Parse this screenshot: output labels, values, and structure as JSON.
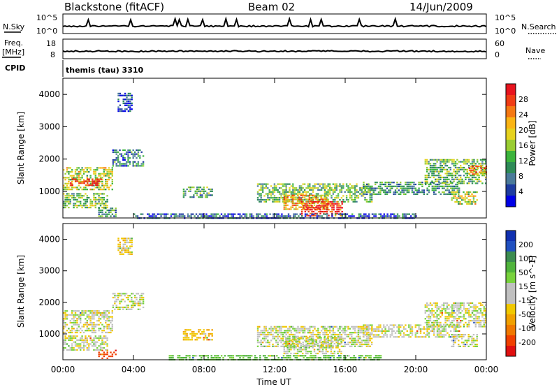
{
  "header": {
    "station": "Blackstone (fitACF)",
    "beam": "Beam 02",
    "date": "14/Jun/2009"
  },
  "aux_panels": {
    "nsky_label": "N.Sky",
    "nsearch_label": "N.Search",
    "noise_ticks_left": [
      "10^5",
      "10^0"
    ],
    "noise_ticks_right": [
      "10^5",
      "10^0"
    ],
    "freq_label_1": "Freq.",
    "freq_label_2": "[MHz]",
    "freq_ticks": [
      "18",
      "8"
    ],
    "nave_label": "Nave",
    "nave_ticks": [
      "60",
      "0"
    ],
    "cpid_label": "CPID",
    "cpid_value": "themis (tau) 3310"
  },
  "colorbars": {
    "power": {
      "label": "Power [dB]",
      "ticks": [
        "28",
        "24",
        "20",
        "16",
        "12",
        "8",
        "4"
      ],
      "colors": [
        "#e8141e",
        "#f03c14",
        "#f57812",
        "#fab414",
        "#e6d21e",
        "#9acd32",
        "#3cb43c",
        "#2e8b57",
        "#4a7a9a",
        "#1e3ca0",
        "#0000e6"
      ]
    },
    "velocity": {
      "label": "Velocity [m s^-1]",
      "ticks": [
        "200",
        "100",
        "50",
        "15",
        "-15",
        "-50",
        "-100",
        "-200"
      ],
      "colors": [
        "#1030b0",
        "#2050c0",
        "#3c8c50",
        "#50b43c",
        "#78d23c",
        "#c0c0c0",
        "#c0c0c0",
        "#f0c800",
        "#f0a000",
        "#f07800",
        "#f04000",
        "#e01010"
      ]
    }
  },
  "chart_data": [
    {
      "type": "heatmap",
      "panel": "power",
      "ylabel": "Slant Range [km]",
      "yticks": [
        "4000",
        "3000",
        "2000",
        "1000"
      ],
      "xticks": [
        "00:00",
        "04:00",
        "08:00",
        "12:00",
        "16:00",
        "20:00",
        "00:00"
      ],
      "xlim_hours": [
        0,
        24
      ],
      "ylim_km": [
        180,
        4500
      ],
      "regions": [
        {
          "t0": 0.0,
          "t1": 2.8,
          "r0": 1050,
          "r1": 1750,
          "level": 0.55
        },
        {
          "t0": 0.4,
          "t1": 2.2,
          "r0": 1200,
          "r1": 1400,
          "level": 0.95
        },
        {
          "t0": 0.0,
          "t1": 2.5,
          "r0": 500,
          "r1": 950,
          "level": 0.45
        },
        {
          "t0": 2.0,
          "t1": 3.0,
          "r0": 250,
          "r1": 500,
          "level": 0.3
        },
        {
          "t0": 2.8,
          "t1": 4.6,
          "r0": 1800,
          "r1": 2300,
          "level": 0.25
        },
        {
          "t0": 3.1,
          "t1": 3.9,
          "r0": 3500,
          "r1": 4050,
          "level": 0.1
        },
        {
          "t0": 6.8,
          "t1": 8.5,
          "r0": 800,
          "r1": 1150,
          "level": 0.35
        },
        {
          "t0": 11.0,
          "t1": 17.5,
          "r0": 700,
          "r1": 1250,
          "level": 0.4
        },
        {
          "t0": 12.5,
          "t1": 15.0,
          "r0": 450,
          "r1": 900,
          "level": 0.7
        },
        {
          "t0": 13.5,
          "t1": 15.8,
          "r0": 250,
          "r1": 700,
          "level": 0.95
        },
        {
          "t0": 17.0,
          "t1": 22.5,
          "r0": 900,
          "r1": 1300,
          "level": 0.3
        },
        {
          "t0": 20.5,
          "t1": 24.0,
          "r0": 1250,
          "r1": 2000,
          "level": 0.4
        },
        {
          "t0": 22.0,
          "t1": 23.5,
          "r0": 600,
          "r1": 1000,
          "level": 0.55
        },
        {
          "t0": 23.0,
          "t1": 24.0,
          "r0": 1500,
          "r1": 1800,
          "level": 0.8
        },
        {
          "t0": 4.0,
          "t1": 20.0,
          "r0": 180,
          "r1": 320,
          "level": 0.15
        }
      ]
    },
    {
      "type": "heatmap",
      "panel": "velocity",
      "ylabel": "Slant Range [km]",
      "xlabel": "Time UT",
      "yticks": [
        "4000",
        "3000",
        "2000",
        "1000"
      ],
      "xticks": [
        "00:00",
        "04:00",
        "08:00",
        "12:00",
        "16:00",
        "20:00",
        "00:00"
      ],
      "xlim_hours": [
        0,
        24
      ],
      "ylim_km": [
        180,
        4500
      ],
      "regions": [
        {
          "t0": 0.0,
          "t1": 2.8,
          "r0": 1050,
          "r1": 1750,
          "vel": 0
        },
        {
          "t0": 0.0,
          "t1": 2.5,
          "r0": 500,
          "r1": 950,
          "vel": 0
        },
        {
          "t0": 2.0,
          "t1": 3.0,
          "r0": 250,
          "r1": 500,
          "vel": -120
        },
        {
          "t0": 2.8,
          "t1": 4.6,
          "r0": 1800,
          "r1": 2300,
          "vel": 0
        },
        {
          "t0": 3.1,
          "t1": 3.9,
          "r0": 3500,
          "r1": 4050,
          "vel": -30
        },
        {
          "t0": 6.8,
          "t1": 8.5,
          "r0": 800,
          "r1": 1150,
          "vel": -40
        },
        {
          "t0": 11.0,
          "t1": 17.5,
          "r0": 600,
          "r1": 1250,
          "vel": 0
        },
        {
          "t0": 12.5,
          "t1": 15.8,
          "r0": 400,
          "r1": 900,
          "vel": 0
        },
        {
          "t0": 6.0,
          "t1": 18.0,
          "r0": 180,
          "r1": 330,
          "vel": 60
        },
        {
          "t0": 17.0,
          "t1": 22.5,
          "r0": 900,
          "r1": 1300,
          "vel": 0
        },
        {
          "t0": 20.5,
          "t1": 24.0,
          "r0": 1250,
          "r1": 2000,
          "vel": 0
        },
        {
          "t0": 22.0,
          "t1": 23.5,
          "r0": 600,
          "r1": 1000,
          "vel": 0
        }
      ]
    }
  ]
}
